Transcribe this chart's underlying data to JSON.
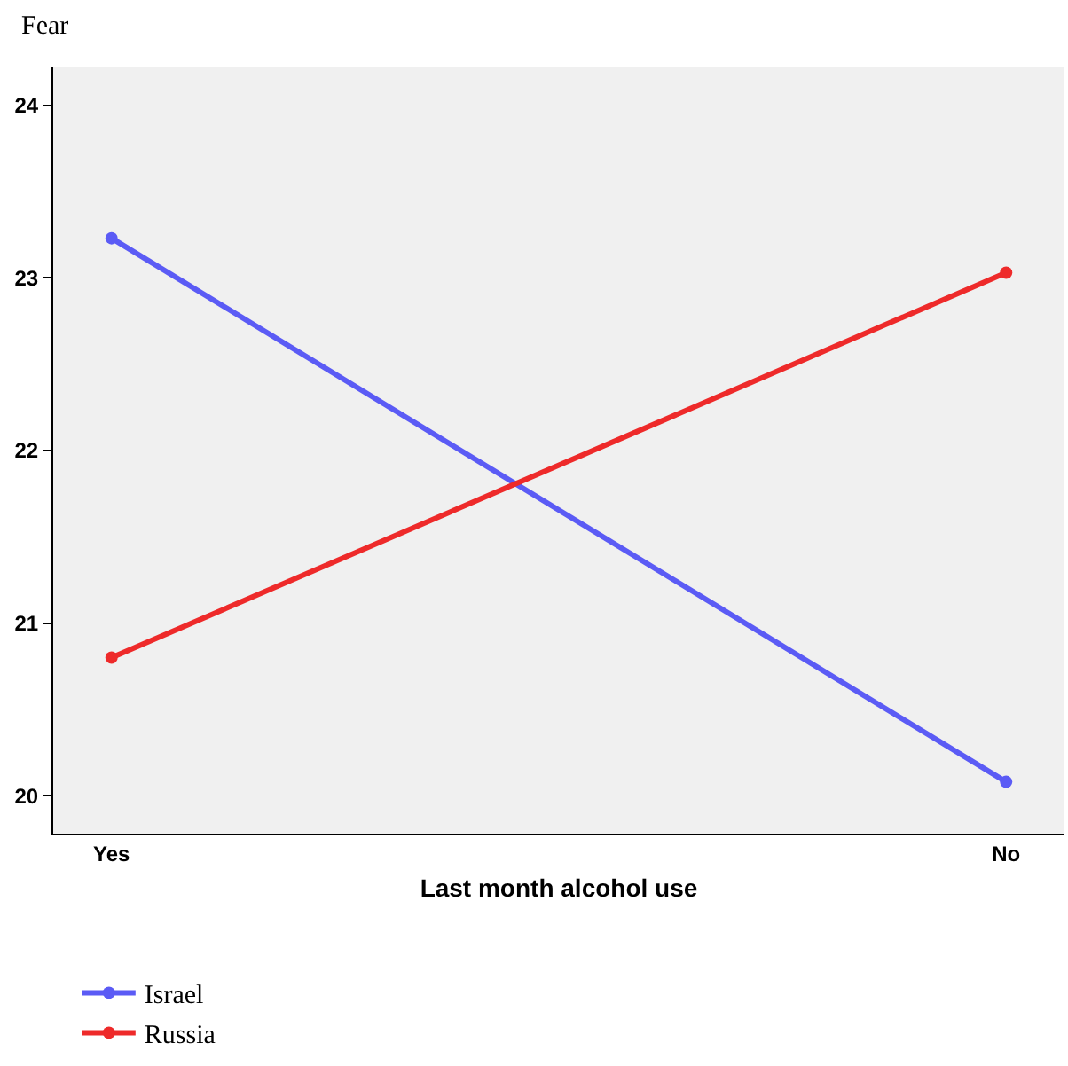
{
  "chart_data": {
    "type": "line",
    "ylabel": "Fear",
    "xlabel": "Last month alcohol use",
    "categories": [
      "Yes",
      "No"
    ],
    "series": [
      {
        "name": "Israel",
        "color": "#5b5bf5",
        "values": [
          23.23,
          20.08
        ]
      },
      {
        "name": "Russia",
        "color": "#ee2a2a",
        "values": [
          20.8,
          23.03
        ]
      }
    ],
    "ylim": [
      19.78,
      24.22
    ],
    "yticks": [
      20,
      21,
      22,
      23,
      24
    ],
    "legend": "bottom left",
    "marker": "circle",
    "line_style": "solid"
  }
}
